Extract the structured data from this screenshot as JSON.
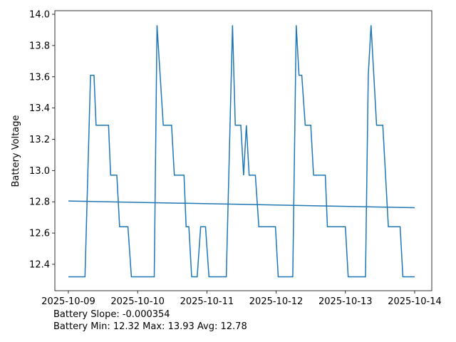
{
  "chart_data": {
    "type": "line",
    "ylabel": "Battery Voltage",
    "annotations": [
      "Battery Slope: -0.000354",
      "Battery Min: 12.32 Max: 13.93 Avg: 12.78"
    ],
    "series": [
      {
        "color": "#1f77b4",
        "x": [
          0.0,
          0.24,
          0.32,
          0.37,
          0.4,
          0.58,
          0.61,
          0.7,
          0.74,
          0.86,
          0.91,
          1.24,
          1.28,
          1.37,
          1.49,
          1.53,
          1.67,
          1.7,
          1.74,
          1.78,
          1.86,
          1.91,
          1.98,
          2.03,
          2.28,
          2.37,
          2.41,
          2.49,
          2.53,
          2.57,
          2.61,
          2.7,
          2.75,
          2.99,
          3.03,
          3.24,
          3.29,
          3.33,
          3.37,
          3.42,
          3.5,
          3.54,
          3.71,
          3.74,
          4.0,
          4.04,
          4.29,
          4.33,
          4.37,
          4.45,
          4.54,
          4.62,
          4.79,
          4.83,
          5.0
        ],
        "values": [
          12.32,
          12.32,
          13.61,
          13.61,
          13.29,
          13.29,
          12.97,
          12.97,
          12.64,
          12.64,
          12.32,
          12.32,
          13.93,
          13.29,
          13.29,
          12.97,
          12.97,
          12.64,
          12.64,
          12.32,
          12.32,
          12.64,
          12.64,
          12.32,
          12.32,
          13.93,
          13.29,
          13.29,
          12.97,
          13.29,
          12.97,
          12.97,
          12.64,
          12.64,
          12.32,
          12.32,
          13.93,
          13.61,
          13.61,
          13.29,
          13.29,
          12.97,
          12.97,
          12.64,
          12.64,
          12.32,
          12.32,
          13.61,
          13.93,
          13.29,
          13.29,
          12.64,
          12.64,
          12.32,
          12.32
        ]
      },
      {
        "color": "#1f77b4",
        "x": [
          0.0,
          5.0
        ],
        "values": [
          12.805,
          12.762
        ]
      }
    ],
    "xlim": [
      -0.195,
      5.247
    ],
    "xticks": [
      {
        "value": 0,
        "label": "2025-10-09"
      },
      {
        "value": 1,
        "label": "2025-10-10"
      },
      {
        "value": 2,
        "label": "2025-10-11"
      },
      {
        "value": 3,
        "label": "2025-10-12"
      },
      {
        "value": 4,
        "label": "2025-10-13"
      },
      {
        "value": 5,
        "label": "2025-10-14"
      }
    ],
    "ylim": [
      12.231,
      14.023
    ],
    "yticks": [
      12.4,
      12.6,
      12.8,
      {
        "value": 13,
        "label": "13.0"
      },
      13.2,
      13.4,
      13.6,
      13.8,
      {
        "value": 14,
        "label": "14.0"
      }
    ],
    "ylabel_color": "#1f77b4"
  }
}
